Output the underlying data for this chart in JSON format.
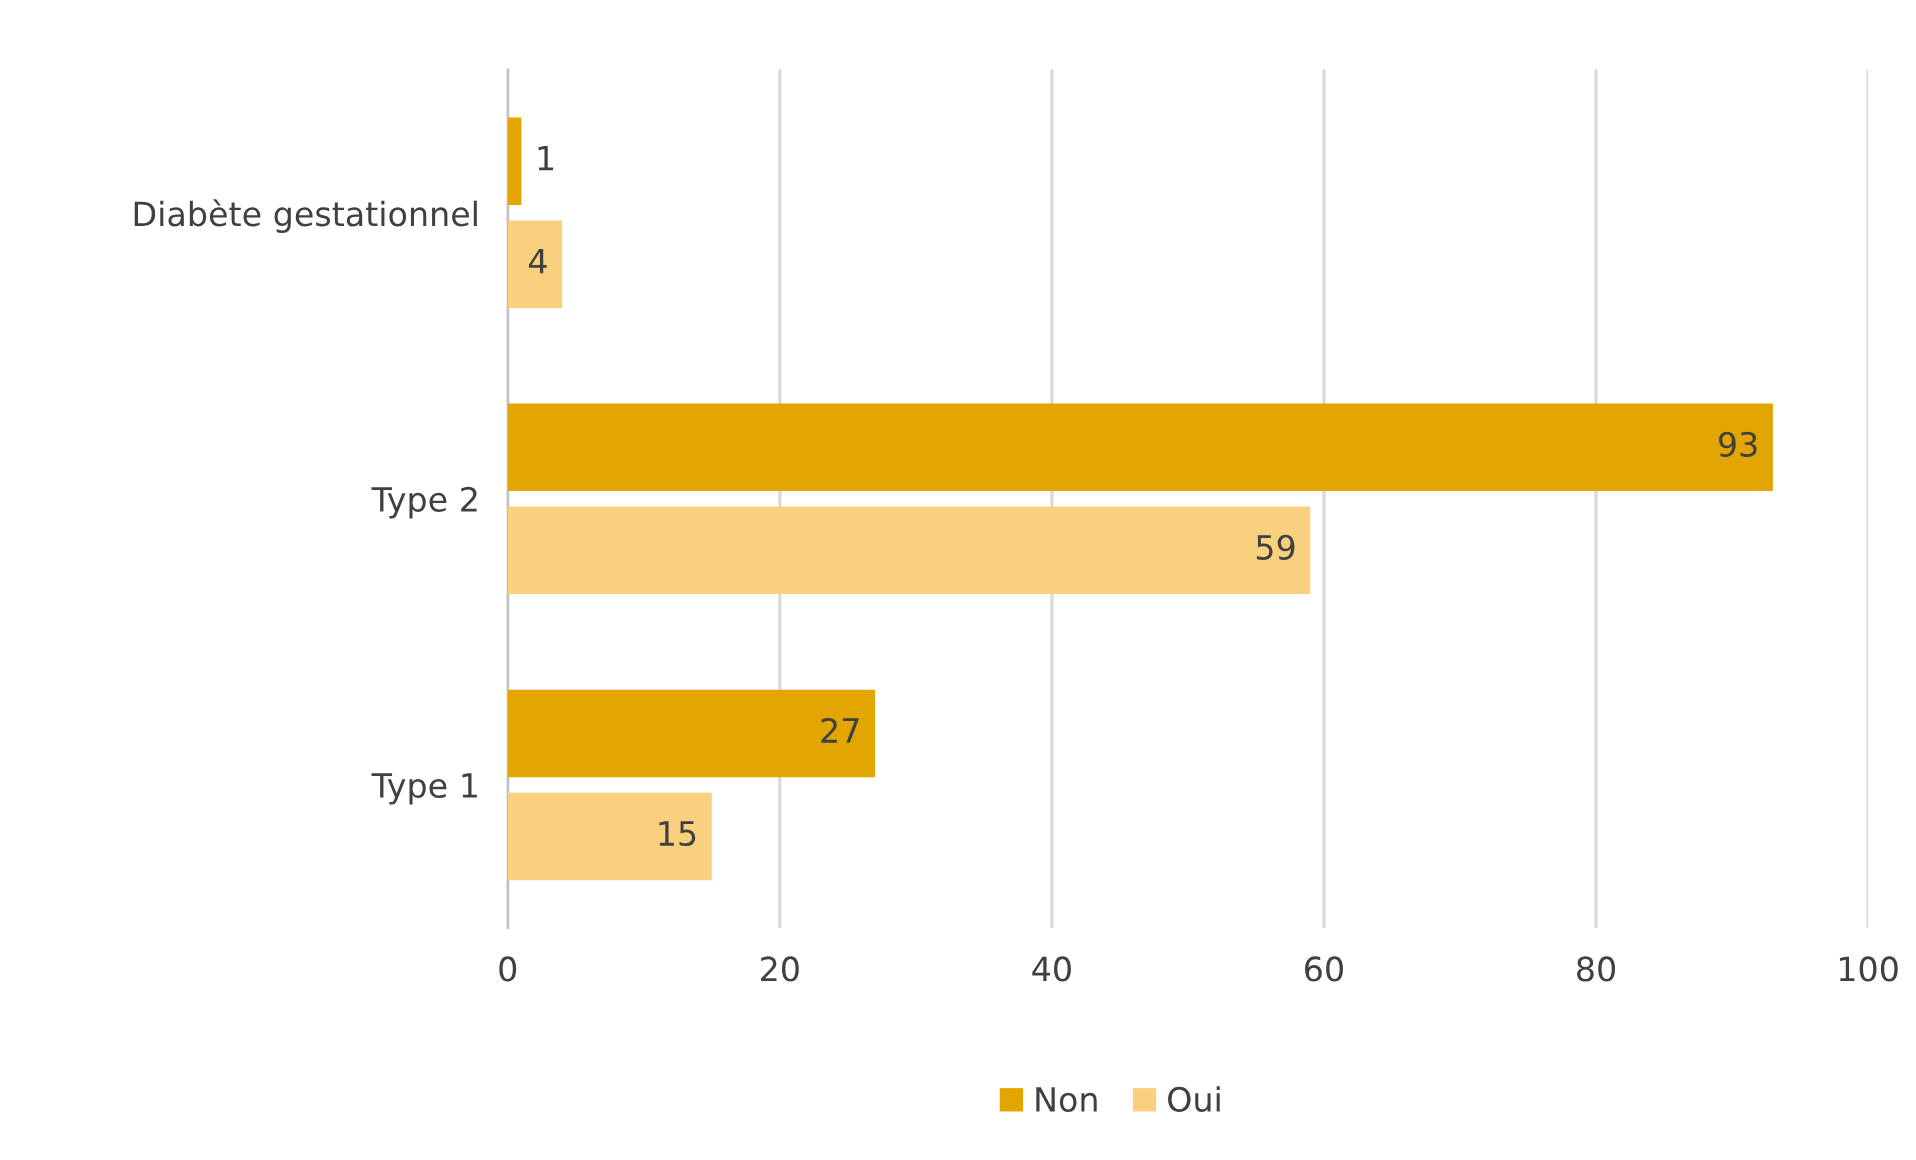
{
  "chart_data": {
    "type": "bar",
    "orientation": "horizontal",
    "categories": [
      "Diabète gestationnel",
      "Type 2",
      "Type 1"
    ],
    "series": [
      {
        "name": "Non",
        "color": "#e3a600",
        "values": [
          1,
          93,
          27
        ]
      },
      {
        "name": "Oui",
        "color": "#f9d07e",
        "values": [
          4,
          59,
          15
        ]
      }
    ],
    "xlim": [
      0,
      100
    ],
    "xticks": [
      0,
      20,
      40,
      60,
      80,
      100
    ],
    "grid": "x",
    "legend": "bottom",
    "data_labels": true
  }
}
